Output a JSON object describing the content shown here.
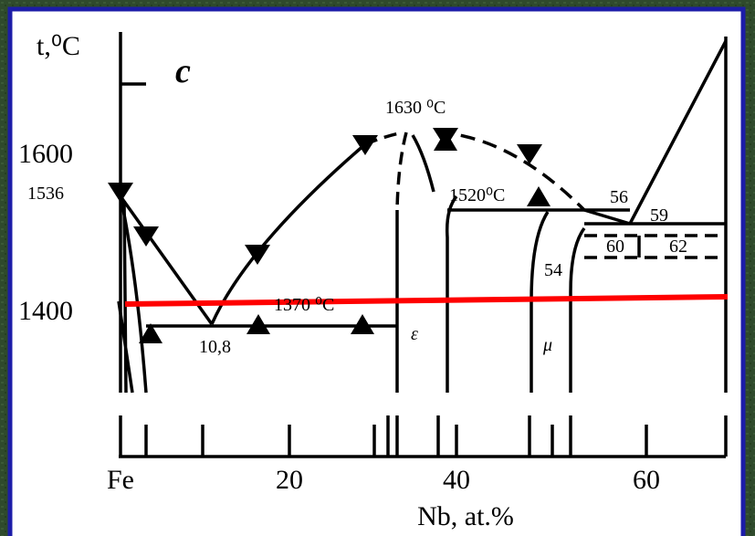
{
  "axes": {
    "y_label": "t,⁰C",
    "x_label": "Nb, at.%",
    "y_tick_labels": [
      "1600",
      "1536",
      "1400"
    ],
    "x_tick_labels": [
      "Fe",
      "20",
      "40",
      "60"
    ]
  },
  "panel_label": "c",
  "annotations": [
    "1630 ⁰C",
    "1520⁰C",
    "1370 ⁰C",
    "10,8",
    "ε",
    "μ",
    "56",
    "59",
    "60",
    "62",
    "54"
  ]
}
